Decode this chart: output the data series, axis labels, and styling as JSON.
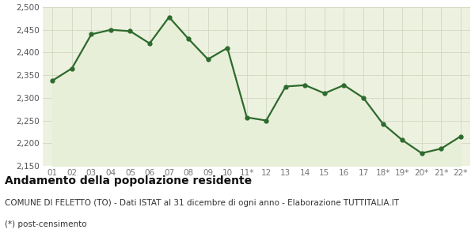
{
  "x_labels": [
    "01",
    "02",
    "03",
    "04",
    "05",
    "06",
    "07",
    "08",
    "09",
    "10",
    "11*",
    "12",
    "13",
    "14",
    "15",
    "16",
    "17",
    "18*",
    "19*",
    "20*",
    "21*",
    "22*"
  ],
  "y_values": [
    2338,
    2365,
    2440,
    2450,
    2447,
    2420,
    2478,
    2430,
    2385,
    2410,
    2257,
    2250,
    2325,
    2328,
    2310,
    2328,
    2300,
    2243,
    2207,
    2178,
    2188,
    2215
  ],
  "ylim": [
    2150,
    2500
  ],
  "yticks": [
    2150,
    2200,
    2250,
    2300,
    2350,
    2400,
    2450,
    2500
  ],
  "line_color": "#2d6a2d",
  "fill_color": "#e8efd8",
  "marker": "o",
  "marker_size": 3.5,
  "line_width": 1.6,
  "grid_color": "#d0d8c0",
  "fig_background": "#ffffff",
  "axes_background": "#edf1e0",
  "title": "Andamento della popolazione residente",
  "subtitle": "COMUNE DI FELETTO (TO) - Dati ISTAT al 31 dicembre di ogni anno - Elaborazione TUTTITALIA.IT",
  "footnote": "(*) post-censimento",
  "title_fontsize": 10,
  "subtitle_fontsize": 7.5,
  "footnote_fontsize": 7.5,
  "tick_fontsize": 7.5,
  "ytick_color": "#555555",
  "xtick_color": "#777777"
}
